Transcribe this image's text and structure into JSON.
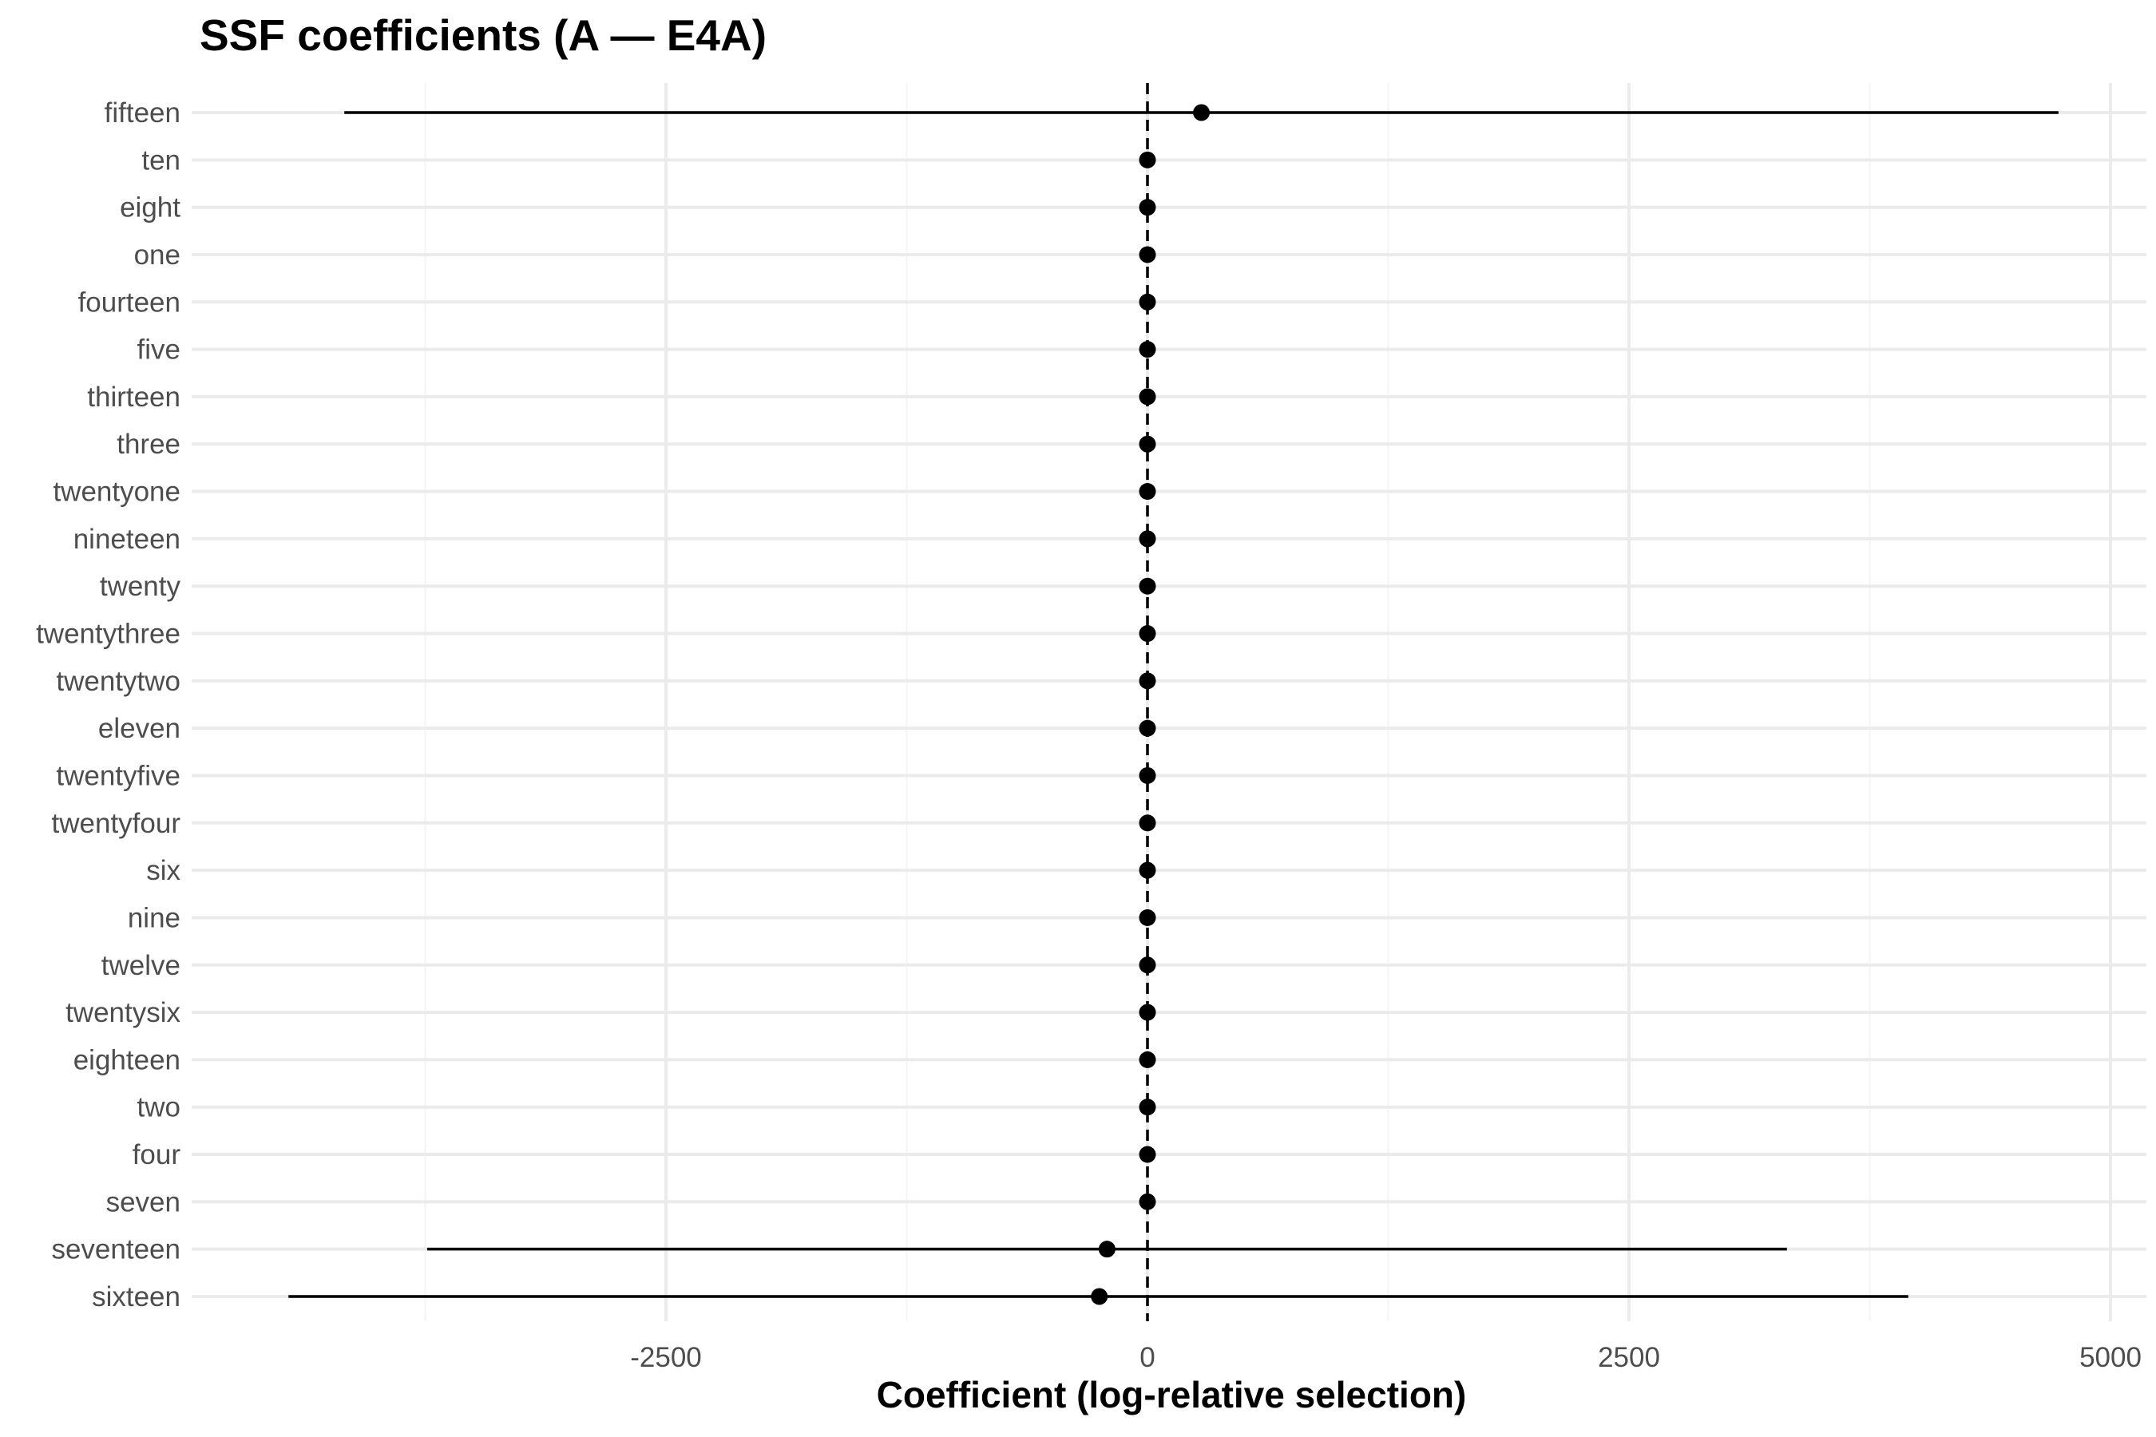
{
  "chart_data": {
    "type": "dot-whisker",
    "title": "SSF coefficients (A — E4A)",
    "xlabel": "Coefficient (log-relative selection)",
    "ylabel": "",
    "xlim": [
      -5000,
      5100
    ],
    "xticks": [
      -2500,
      0,
      2500,
      5000
    ],
    "xtick_labels": [
      "-2500",
      "0",
      "2500",
      "5000"
    ],
    "reference_line": 0,
    "grid": true,
    "categories": [
      "fifteen",
      "ten",
      "eight",
      "one",
      "fourteen",
      "five",
      "thirteen",
      "three",
      "twentyone",
      "nineteen",
      "twenty",
      "twentythree",
      "twentytwo",
      "eleven",
      "twentyfive",
      "twentyfour",
      "six",
      "nine",
      "twelve",
      "twentysix",
      "eighteen",
      "two",
      "four",
      "seven",
      "seventeen",
      "sixteen"
    ],
    "estimates": [
      280,
      0,
      0,
      0,
      0,
      0,
      0,
      0,
      0,
      0,
      0,
      0,
      0,
      0,
      0,
      0,
      0,
      0,
      0,
      0,
      0,
      0,
      0,
      0,
      -210,
      -250
    ],
    "lower": [
      -4170,
      null,
      null,
      null,
      null,
      null,
      null,
      null,
      null,
      null,
      null,
      null,
      null,
      null,
      null,
      null,
      null,
      null,
      null,
      null,
      null,
      null,
      null,
      null,
      -3740,
      -4460
    ],
    "upper": [
      4730,
      null,
      null,
      null,
      null,
      null,
      null,
      null,
      null,
      null,
      null,
      null,
      null,
      null,
      null,
      null,
      null,
      null,
      null,
      null,
      null,
      null,
      null,
      null,
      3320,
      3950
    ],
    "colors": {
      "point": "#000000",
      "interval": "#000000",
      "grid": "#ebebeb",
      "reference": "#000000"
    }
  }
}
